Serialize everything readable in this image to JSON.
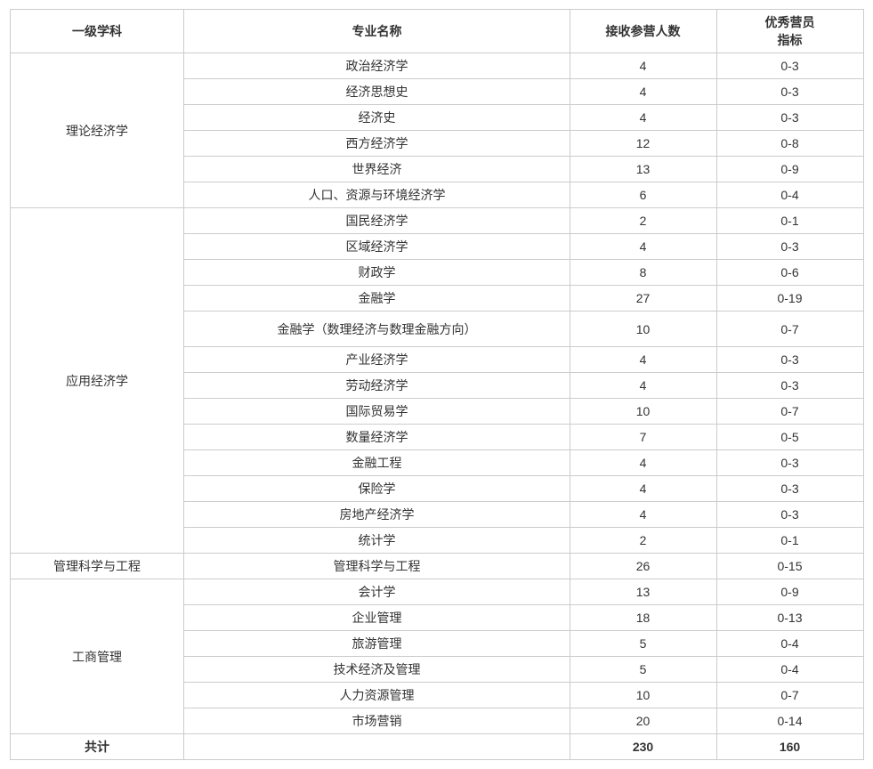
{
  "headers": {
    "category": "一级学科",
    "major": "专业名称",
    "count": "接收参营人数",
    "quota_line1": "优秀营员",
    "quota_line2": "指标"
  },
  "categories": [
    {
      "name": "理论经济学",
      "majors": [
        {
          "name": "政治经济学",
          "count": "4",
          "quota": "0-3"
        },
        {
          "name": "经济思想史",
          "count": "4",
          "quota": "0-3"
        },
        {
          "name": "经济史",
          "count": "4",
          "quota": "0-3"
        },
        {
          "name": "西方经济学",
          "count": "12",
          "quota": "0-8"
        },
        {
          "name": "世界经济",
          "count": "13",
          "quota": "0-9"
        },
        {
          "name": "人口、资源与环境经济学",
          "count": "6",
          "quota": "0-4"
        }
      ]
    },
    {
      "name": "应用经济学",
      "majors": [
        {
          "name": "国民经济学",
          "count": "2",
          "quota": "0-1"
        },
        {
          "name": "区域经济学",
          "count": "4",
          "quota": "0-3"
        },
        {
          "name": "财政学",
          "count": "8",
          "quota": "0-6"
        },
        {
          "name": "金融学",
          "count": "27",
          "quota": "0-19"
        },
        {
          "name": "金融学（数理经济与数理金融方向）",
          "count": "10",
          "quota": "0-7",
          "tall": true
        },
        {
          "name": "产业经济学",
          "count": "4",
          "quota": "0-3"
        },
        {
          "name": "劳动经济学",
          "count": "4",
          "quota": "0-3"
        },
        {
          "name": "国际贸易学",
          "count": "10",
          "quota": "0-7"
        },
        {
          "name": "数量经济学",
          "count": "7",
          "quota": "0-5"
        },
        {
          "name": "金融工程",
          "count": "4",
          "quota": "0-3"
        },
        {
          "name": "保险学",
          "count": "4",
          "quota": "0-3"
        },
        {
          "name": "房地产经济学",
          "count": "4",
          "quota": "0-3"
        },
        {
          "name": "统计学",
          "count": "2",
          "quota": "0-1"
        }
      ]
    },
    {
      "name": "管理科学与工程",
      "majors": [
        {
          "name": "管理科学与工程",
          "count": "26",
          "quota": "0-15"
        }
      ]
    },
    {
      "name": "工商管理",
      "majors": [
        {
          "name": "会计学",
          "count": "13",
          "quota": "0-9"
        },
        {
          "name": "企业管理",
          "count": "18",
          "quota": "0-13"
        },
        {
          "name": "旅游管理",
          "count": "5",
          "quota": "0-4"
        },
        {
          "name": "技术经济及管理",
          "count": "5",
          "quota": "0-4"
        },
        {
          "name": "人力资源管理",
          "count": "10",
          "quota": "0-7"
        },
        {
          "name": "市场营销",
          "count": "20",
          "quota": "0-14"
        }
      ]
    }
  ],
  "total": {
    "label": "共计",
    "count": "230",
    "quota": "160"
  }
}
